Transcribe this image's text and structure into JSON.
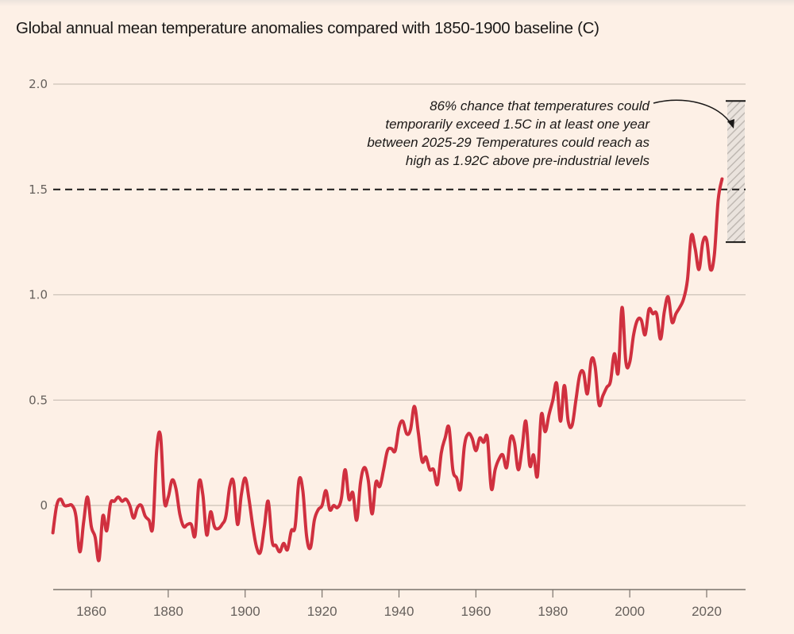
{
  "chart_data": {
    "type": "line",
    "title": "Global annual mean temperature anomalies compared with 1850-1900 baseline (C)",
    "xlabel": "",
    "ylabel": "",
    "xlim": [
      1850,
      2030
    ],
    "ylim": [
      -0.4,
      2.0
    ],
    "grid": true,
    "y_ticks": [
      {
        "value": 0,
        "label": "0"
      },
      {
        "value": 0.5,
        "label": "0.5"
      },
      {
        "value": 1.0,
        "label": "1.0"
      },
      {
        "value": 1.5,
        "label": "1.5"
      },
      {
        "value": 2.0,
        "label": "2.0"
      }
    ],
    "x_ticks": [
      {
        "value": 1860,
        "label": "1860"
      },
      {
        "value": 1880,
        "label": "1880"
      },
      {
        "value": 1900,
        "label": "1900"
      },
      {
        "value": 1920,
        "label": "1920"
      },
      {
        "value": 1940,
        "label": "1940"
      },
      {
        "value": 1960,
        "label": "1960"
      },
      {
        "value": 1980,
        "label": "1980"
      },
      {
        "value": 2000,
        "label": "2000"
      },
      {
        "value": 2020,
        "label": "2020"
      }
    ],
    "series": [
      {
        "name": "Global annual mean temperature anomaly",
        "color": "#d0303f",
        "start_year": 1850,
        "values": [
          -0.13,
          0.0,
          0.03,
          0.0,
          0.0,
          0.0,
          -0.05,
          -0.22,
          -0.08,
          0.04,
          -0.1,
          -0.15,
          -0.26,
          -0.05,
          -0.12,
          0.01,
          0.02,
          0.04,
          0.02,
          0.03,
          0.0,
          -0.06,
          -0.01,
          0.0,
          -0.05,
          -0.07,
          -0.1,
          0.26,
          0.33,
          0.02,
          0.04,
          0.12,
          0.08,
          -0.04,
          -0.1,
          -0.09,
          -0.09,
          -0.14,
          0.11,
          0.05,
          -0.14,
          -0.03,
          -0.1,
          -0.11,
          -0.09,
          -0.05,
          0.09,
          0.11,
          -0.09,
          0.05,
          0.13,
          0.03,
          -0.1,
          -0.2,
          -0.22,
          -0.1,
          0.02,
          -0.17,
          -0.19,
          -0.22,
          -0.18,
          -0.21,
          -0.12,
          -0.1,
          0.12,
          0.07,
          -0.15,
          -0.2,
          -0.07,
          -0.02,
          0.0,
          0.07,
          -0.02,
          0.0,
          -0.01,
          0.03,
          0.17,
          0.03,
          0.06,
          -0.07,
          0.11,
          0.18,
          0.12,
          -0.04,
          0.11,
          0.09,
          0.17,
          0.26,
          0.27,
          0.26,
          0.37,
          0.4,
          0.34,
          0.36,
          0.47,
          0.35,
          0.21,
          0.23,
          0.17,
          0.17,
          0.1,
          0.25,
          0.32,
          0.37,
          0.17,
          0.13,
          0.08,
          0.28,
          0.34,
          0.32,
          0.26,
          0.32,
          0.3,
          0.32,
          0.08,
          0.17,
          0.22,
          0.24,
          0.18,
          0.32,
          0.3,
          0.17,
          0.27,
          0.4,
          0.19,
          0.24,
          0.14,
          0.43,
          0.35,
          0.43,
          0.5,
          0.58,
          0.4,
          0.57,
          0.4,
          0.38,
          0.5,
          0.62,
          0.63,
          0.53,
          0.69,
          0.66,
          0.48,
          0.52,
          0.56,
          0.59,
          0.72,
          0.63,
          0.94,
          0.68,
          0.68,
          0.81,
          0.88,
          0.88,
          0.81,
          0.93,
          0.91,
          0.91,
          0.79,
          0.92,
          0.99,
          0.87,
          0.91,
          0.94,
          0.98,
          1.07,
          1.28,
          1.22,
          1.12,
          1.25,
          1.26,
          1.12,
          1.19,
          1.45,
          1.55
        ]
      }
    ],
    "reference_line": {
      "value": 1.5,
      "style": "dashed"
    },
    "projection_range": {
      "period": "2025-29",
      "low": 1.25,
      "high": 1.92,
      "style": "hatched"
    },
    "annotations": [
      {
        "lines": [
          "86% chance that temperatures could",
          "temporarily exceed 1.5C in at least one year",
          "between 2025-29 Temperatures could reach as",
          "high as 1.92C above pre-industrial levels"
        ],
        "points_to": "projection_range",
        "position": "top-right"
      }
    ],
    "legend": "none"
  }
}
